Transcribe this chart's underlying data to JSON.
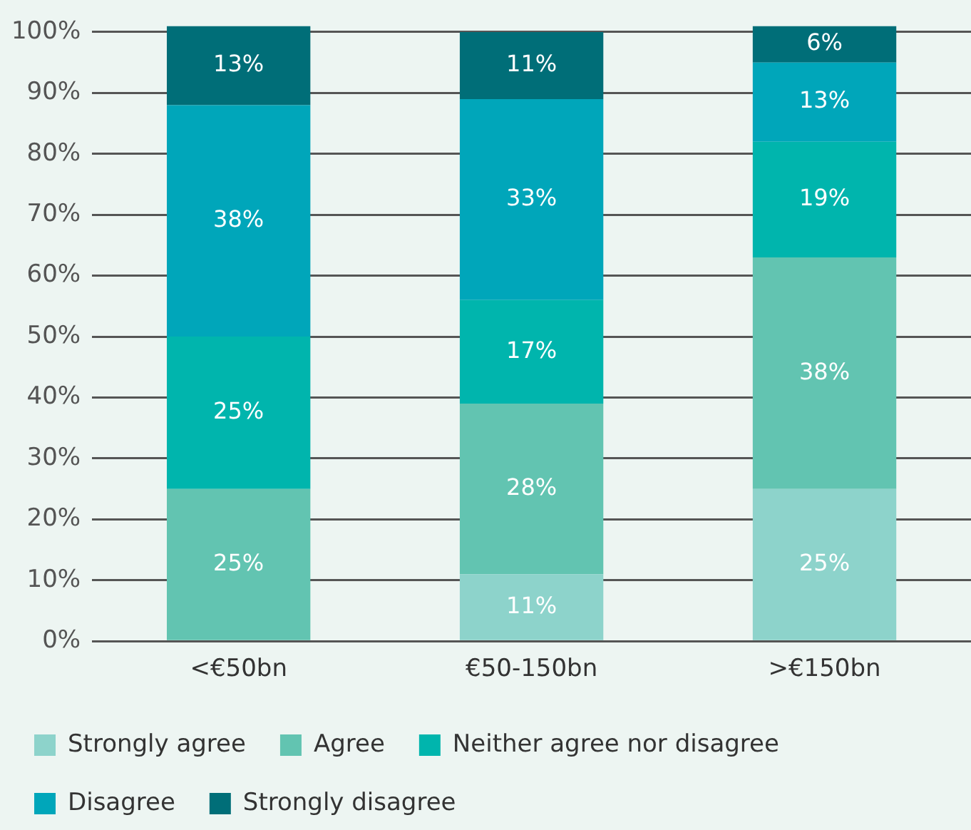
{
  "chart_data": {
    "type": "bar",
    "stacked": true,
    "categories": [
      "<€50bn",
      "€50-150bn",
      ">€150bn"
    ],
    "series": [
      {
        "name": "Strongly agree",
        "color": "#8dd3cb",
        "values": [
          null,
          11,
          25
        ],
        "value_labels": [
          null,
          "11%",
          "25%"
        ]
      },
      {
        "name": "Agree",
        "color": "#62c4b1",
        "values": [
          25,
          28,
          38
        ],
        "value_labels": [
          "25%",
          "28%",
          "38%"
        ]
      },
      {
        "name": "Neither agree nor disagree",
        "color": "#00b5ad",
        "values": [
          25,
          17,
          19
        ],
        "value_labels": [
          "25%",
          "17%",
          "19%"
        ]
      },
      {
        "name": "Disagree",
        "color": "#00a6ba",
        "values": [
          38,
          33,
          13
        ],
        "value_labels": [
          "38%",
          "33%",
          "13%"
        ]
      },
      {
        "name": "Strongly disagree",
        "color": "#006e78",
        "values": [
          13,
          11,
          6
        ],
        "value_labels": [
          "13%",
          "11%",
          "6%"
        ]
      }
    ],
    "ylim": [
      0,
      101
    ],
    "yticks": [
      {
        "value": 0,
        "label": "0%"
      },
      {
        "value": 10,
        "label": "10%"
      },
      {
        "value": 20,
        "label": "20%"
      },
      {
        "value": 30,
        "label": "30%"
      },
      {
        "value": 40,
        "label": "40%"
      },
      {
        "value": 50,
        "label": "50%"
      },
      {
        "value": 60,
        "label": "60%"
      },
      {
        "value": 70,
        "label": "70%"
      },
      {
        "value": 80,
        "label": "80%"
      },
      {
        "value": 90,
        "label": "90%"
      },
      {
        "value": 100,
        "label": "100%"
      }
    ],
    "grid": "y",
    "legend": "bottom"
  }
}
